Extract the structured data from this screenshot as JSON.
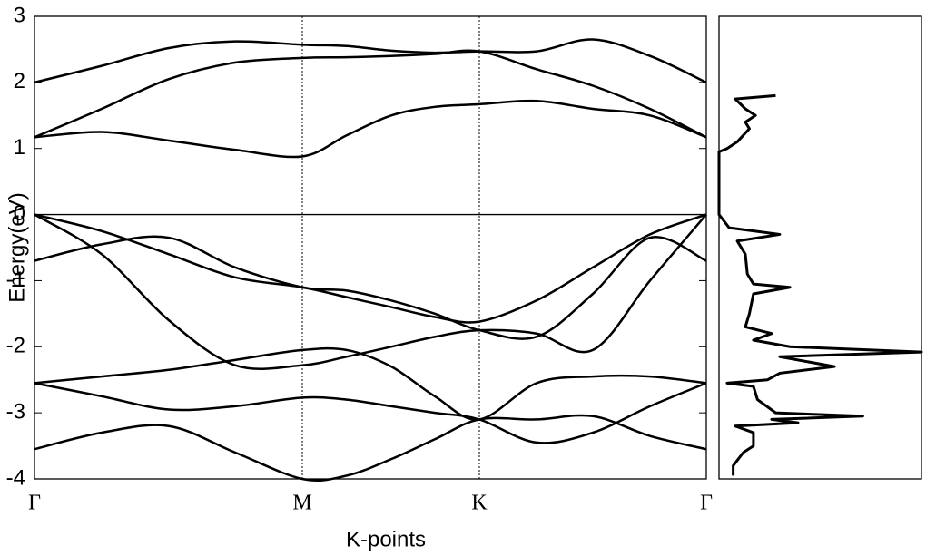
{
  "chart_data": [
    {
      "type": "line",
      "xlabel": "K-points",
      "ylabel": "Energy(eV)",
      "x": [
        0,
        0.74,
        1.48,
        2.21,
        2.95,
        3.44,
        3.93,
        4.41,
        4.9,
        5.53,
        6.15,
        6.78,
        7.4
      ],
      "series": [
        {
          "color": "#000000",
          "values": [
            1.17,
            1.25,
            1.12,
            0.98,
            0.88,
            1.2,
            1.5,
            1.63,
            1.67,
            1.72,
            1.6,
            1.5,
            1.17
          ]
        },
        {
          "color": "#000000",
          "values": [
            1.17,
            1.6,
            2.05,
            2.3,
            2.37,
            2.38,
            2.4,
            2.43,
            2.47,
            2.2,
            1.95,
            1.6,
            1.17
          ]
        },
        {
          "color": "#000000",
          "values": [
            2.0,
            2.25,
            2.52,
            2.62,
            2.57,
            2.55,
            2.48,
            2.45,
            2.47,
            2.47,
            2.65,
            2.4,
            2.0
          ]
        },
        {
          "color": "#000000",
          "values": [
            0,
            -0.25,
            -0.6,
            -0.95,
            -1.1,
            -1.25,
            -1.4,
            -1.55,
            -1.62,
            -1.3,
            -0.8,
            -0.3,
            0
          ]
        },
        {
          "color": "#000000",
          "values": [
            0,
            -0.6,
            -1.6,
            -2.28,
            -2.28,
            -2.15,
            -2.0,
            -1.85,
            -1.75,
            -1.8,
            -2.05,
            -1.0,
            0
          ]
        },
        {
          "color": "#000000",
          "values": [
            -0.7,
            -0.45,
            -0.35,
            -0.8,
            -1.1,
            -1.15,
            -1.3,
            -1.5,
            -1.75,
            -1.85,
            -1.2,
            -0.35,
            -0.7
          ]
        },
        {
          "color": "#000000",
          "values": [
            -2.55,
            -2.45,
            -2.35,
            -2.2,
            -2.05,
            -2.05,
            -2.3,
            -2.75,
            -3.1,
            -2.55,
            -2.45,
            -2.45,
            -2.55
          ]
        },
        {
          "color": "#000000",
          "values": [
            -2.55,
            -2.75,
            -2.95,
            -2.9,
            -2.77,
            -2.8,
            -2.9,
            -3.0,
            -3.1,
            -3.45,
            -3.3,
            -2.9,
            -2.55
          ]
        },
        {
          "color": "#000000",
          "values": [
            -3.55,
            -3.3,
            -3.2,
            -3.6,
            -4.0,
            -3.95,
            -3.7,
            -3.4,
            -3.1,
            -3.1,
            -3.05,
            -3.35,
            -3.55
          ]
        }
      ],
      "xlim": [
        0,
        7.4
      ],
      "ylim": [
        -4,
        3
      ],
      "yticks": [
        -4,
        -3,
        -2,
        -1,
        0,
        1,
        2,
        3
      ],
      "xticks": [
        {
          "value": 0,
          "label": "Γ"
        },
        {
          "value": 2.95,
          "label": "M"
        },
        {
          "value": 4.9,
          "label": "K"
        },
        {
          "value": 7.4,
          "label": "Γ"
        }
      ],
      "zero_line": true,
      "kpoint_lines": true
    },
    {
      "type": "dos",
      "color": "#000000",
      "y": [
        1.8,
        1.75,
        1.6,
        1.5,
        1.4,
        1.3,
        1.2,
        1.1,
        1.0,
        0.95,
        0.5,
        0,
        -0.2,
        -0.3,
        -0.4,
        -0.6,
        -0.9,
        -1.05,
        -1.1,
        -1.2,
        -1.5,
        -1.7,
        -1.8,
        -1.9,
        -2.0,
        -2.08,
        -2.15,
        -2.3,
        -2.4,
        -2.5,
        -2.55,
        -2.6,
        -2.8,
        -3.0,
        -3.05,
        -3.1,
        -3.15,
        -3.2,
        -3.3,
        -3.5,
        -3.6,
        -3.8,
        -3.95
      ],
      "values": [
        28,
        8,
        13,
        18,
        13,
        15,
        12,
        9,
        4,
        0,
        0,
        0,
        5,
        30,
        9,
        13,
        14,
        17,
        35,
        17,
        15,
        13,
        26,
        17,
        35,
        100,
        30,
        57,
        30,
        24,
        4,
        17,
        19,
        28,
        71,
        26,
        39,
        8,
        17,
        17,
        12,
        7,
        7
      ],
      "xlim": [
        0,
        100
      ],
      "ylim": [
        -4,
        3
      ]
    }
  ]
}
